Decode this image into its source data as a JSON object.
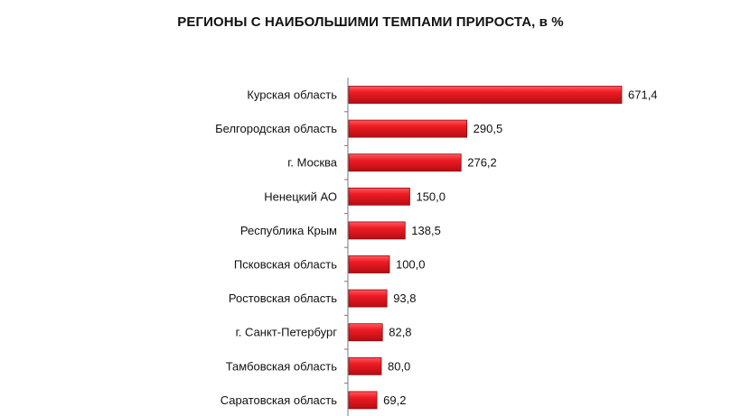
{
  "chart_data": {
    "type": "bar",
    "orientation": "horizontal",
    "title": "РЕГИОНЫ С НАИБОЛЬШИМИ ТЕМПАМИ ПРИРОСТА, в %",
    "categories": [
      "Курская область",
      "Белгородская область",
      "г. Москва",
      "Ненецкий АО",
      "Республика Крым",
      "Псковская область",
      "Ростовская область",
      "г. Санкт-Петербург",
      "Тамбовская область",
      "Саратовская область"
    ],
    "values": [
      671.4,
      290.5,
      276.2,
      150.0,
      138.5,
      100.0,
      93.8,
      82.8,
      80.0,
      69.2
    ],
    "value_labels": [
      "671,4",
      "290,5",
      "276,2",
      "150,0",
      "138,5",
      "100,0",
      "93,8",
      "82,8",
      "80,0",
      "69,2"
    ],
    "xlim": [
      0,
      671.4
    ],
    "grid": false,
    "legend": "none",
    "bar_color": "#e8141c",
    "bar_edge_color": "#8a0a0e"
  }
}
